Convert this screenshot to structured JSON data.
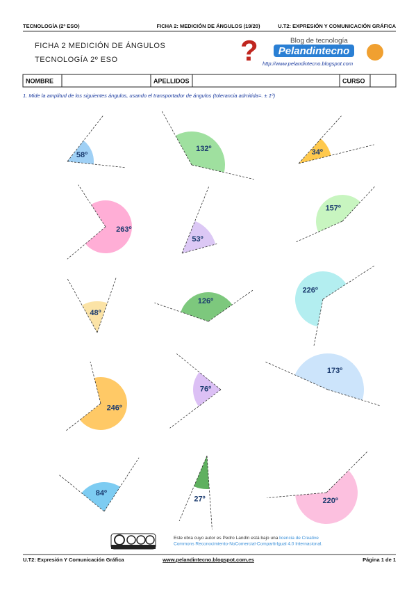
{
  "header": {
    "left": "TECNOLOGÍA (2º ESO)",
    "center": "FICHA 2: MEDICIÓN DE ÁNGULOS (19/20)",
    "right": "U.T2: EXPRESIÓN Y COMUNICACIÓN GRÁFICA"
  },
  "title": {
    "line1": "FICHA 2 MEDICIÓN DE ÁNGULOS",
    "line2": "TECNOLOGÍA 2º ESO"
  },
  "logo": {
    "tagline": "Blog de tecnología",
    "name": "Pelandintecno",
    "url": "http://www.pelandintecno.blogspot.com"
  },
  "table": {
    "cells": [
      "NOMBRE",
      "APELLIDOS",
      "CURSO"
    ]
  },
  "instruction": "1.  Mide la amplitud de los siguientes ángulos, usando el transportador de ángulos (tolerancia admitida=. ± 1º)",
  "angles": [
    {
      "value": 58,
      "label": "58º"
    },
    {
      "value": 132,
      "label": "132º"
    },
    {
      "value": 34,
      "label": "34º"
    },
    {
      "value": 263,
      "label": "263º"
    },
    {
      "value": 53,
      "label": "53º"
    },
    {
      "value": 157,
      "label": "157º"
    },
    {
      "value": 48,
      "label": "48º"
    },
    {
      "value": 126,
      "label": "126º"
    },
    {
      "value": 226,
      "label": "226º"
    },
    {
      "value": 246,
      "label": "246º"
    },
    {
      "value": 76,
      "label": "76º"
    },
    {
      "value": 173,
      "label": "173º"
    },
    {
      "value": 84,
      "label": "84º"
    },
    {
      "value": 27,
      "label": "27º"
    },
    {
      "value": 220,
      "label": "220º"
    }
  ],
  "license": {
    "text": "Este obra cuyo autor es Pedro Landín está bajo una",
    "link1": "licencia de Creative",
    "link2": "Commons Reconocimiento-NoComercial-CompartirIgual 4.0 Internacional."
  },
  "footer": {
    "left": "U.T2: Expresión Y Comunicación Gráfica",
    "center": "www.pelandintecno.blogspot.com.es",
    "right": "Página 1 de 1"
  }
}
